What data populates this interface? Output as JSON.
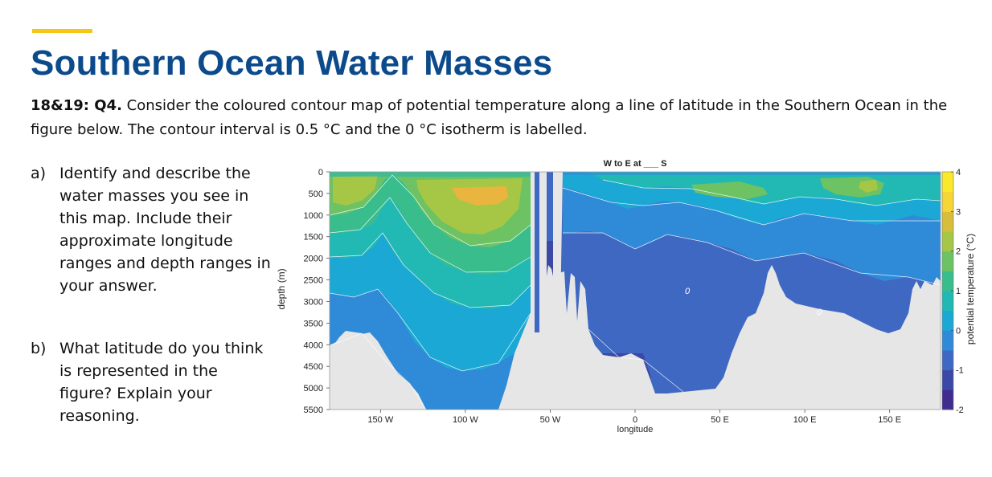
{
  "slide": {
    "title": "Southern Ocean Water Masses",
    "question_id": "18&19: Q4.",
    "question_text": " Consider the coloured contour map of potential temperature along a line of latitude in the Southern Ocean in the figure below. The contour interval is 0.5 °C and the 0 °C isotherm is labelled.",
    "part_a_label": "a)",
    "part_a_text": "Identify and describe the water masses you see in this map. Include their approximate longitude ranges and depth ranges in your answer.",
    "part_b_label": "b)",
    "part_b_text": "What latitude do you think is represented in the figure? Explain your reasoning.",
    "accent_color": "#f5c518",
    "title_color": "#0b4a8b"
  },
  "chart_data": {
    "type": "heatmap",
    "title": "W to E at ___ S",
    "xlabel": "longitude",
    "ylabel": "depth (m)",
    "colorbar_label": "potential temperature (°C)",
    "x_ticks": [
      -150,
      -100,
      -50,
      0,
      50,
      100,
      150
    ],
    "x_tick_labels": [
      "150 W",
      "100 W",
      "50 W",
      "0",
      "50 E",
      "100 E",
      "150 E"
    ],
    "y_ticks": [
      0,
      500,
      1000,
      1500,
      2000,
      2500,
      3000,
      3500,
      4000,
      4500,
      5000,
      5500
    ],
    "y_tick_labels": [
      "0",
      "500",
      "1000",
      "1500",
      "2000",
      "2500",
      "3000",
      "3500",
      "4000",
      "4500",
      "5000",
      "5500"
    ],
    "xlim": [
      -180,
      180
    ],
    "ylim": [
      0,
      5500
    ],
    "clim": [
      -2,
      4
    ],
    "colorbar_ticks": [
      -2,
      -1,
      0,
      1,
      2,
      3,
      4
    ],
    "contour_interval": 0.5,
    "labelled_isotherm": 0,
    "contour_labels": [
      "0",
      "0"
    ],
    "colormap": [
      "#3e2c8f",
      "#3b48a6",
      "#3f68c2",
      "#2f8ad8",
      "#1ba8d4",
      "#22b8b3",
      "#39bd8d",
      "#6dc264",
      "#a6c646",
      "#d8bd3a",
      "#f7d536",
      "#fae92a"
    ]
  }
}
